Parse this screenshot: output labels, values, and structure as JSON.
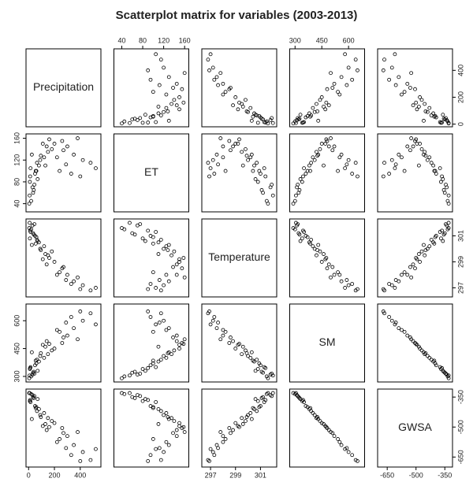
{
  "chart_data": {
    "type": "scatter-matrix",
    "title": "Scatterplot matrix for variables (2003-2013)",
    "variables": [
      {
        "name": "Precipitation",
        "lim": [
          -20,
          560
        ],
        "ticks": [
          0,
          200,
          400
        ],
        "values": [
          20,
          35,
          10,
          50,
          80,
          120,
          150,
          200,
          260,
          300,
          350,
          420,
          480,
          30,
          60,
          5,
          90,
          15,
          180,
          240,
          380,
          70,
          25,
          110,
          330,
          45,
          140,
          8,
          220,
          400,
          65,
          130,
          270,
          12,
          160,
          520,
          40,
          95,
          290,
          55
        ]
      },
      {
        "name": "ET",
        "lim": [
          25,
          168
        ],
        "ticks": [
          40,
          80,
          120,
          160
        ],
        "values": [
          45,
          60,
          80,
          95,
          110,
          125,
          135,
          150,
          155,
          145,
          130,
          120,
          115,
          70,
          100,
          40,
          120,
          105,
          140,
          100,
          160,
          85,
          130,
          150,
          95,
          75,
          145,
          55,
          125,
          90,
          115,
          110,
          138,
          90,
          158,
          105,
          65,
          128,
          112,
          100
        ]
      },
      {
        "name": "Temperature",
        "lim": [
          296.3,
          302.3
        ],
        "ticks": [
          297,
          299,
          301
        ],
        "values": [
          301.5,
          301.2,
          300.8,
          301.0,
          300.5,
          300.2,
          299.5,
          299.0,
          298.5,
          298.0,
          297.5,
          297.2,
          296.8,
          301.8,
          300.9,
          301.6,
          300.0,
          301.3,
          299.8,
          298.2,
          297.8,
          300.6,
          300.3,
          299.2,
          297.3,
          301.9,
          298.8,
          302.0,
          298.0,
          296.9,
          300.7,
          299.6,
          298.6,
          301.4,
          299.3,
          297.0,
          301.1,
          299.9,
          297.6,
          300.4
        ]
      },
      {
        "name": "SM",
        "lim": [
          270,
          690
        ],
        "ticks": [
          300,
          450,
          600
        ],
        "values": [
          300,
          320,
          340,
          360,
          380,
          400,
          420,
          450,
          480,
          520,
          560,
          600,
          640,
          310,
          370,
          290,
          410,
          350,
          440,
          540,
          500,
          330,
          430,
          470,
          620,
          315,
          490,
          305,
          550,
          650,
          390,
          460,
          510,
          345,
          475,
          580,
          325,
          425,
          590,
          385
        ]
      },
      {
        "name": "GWSA",
        "lim": [
          -700,
          -310
        ],
        "ticks": [
          -650,
          -500,
          -350
        ],
        "values": [
          -335,
          -350,
          -370,
          -395,
          -410,
          -430,
          -455,
          -480,
          -505,
          -545,
          -590,
          -625,
          -665,
          -340,
          -400,
          -330,
          -440,
          -375,
          -470,
          -560,
          -525,
          -360,
          -460,
          -495,
          -640,
          -345,
          -515,
          -330,
          -575,
          -670,
          -420,
          -485,
          -530,
          -365,
          -500,
          -610,
          -355,
          -450,
          -605,
          -405
        ]
      }
    ]
  }
}
